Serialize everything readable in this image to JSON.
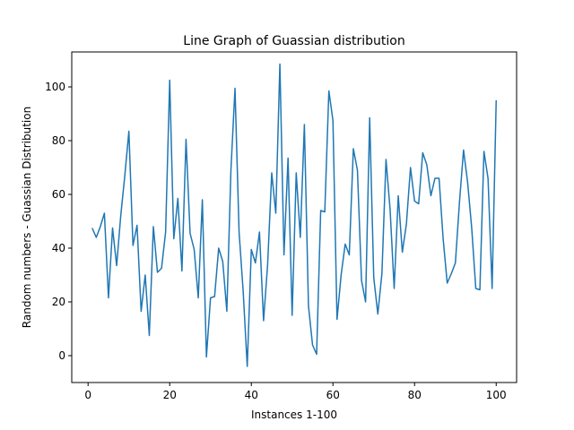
{
  "chart_data": {
    "type": "line",
    "title": "Line Graph of Guassian distribution",
    "xlabel": "Instances 1-100",
    "ylabel": "Random numbers - Guassian Distribution",
    "xlim": [
      -4,
      105
    ],
    "ylim": [
      -10,
      113
    ],
    "xticks": [
      0,
      20,
      40,
      60,
      80,
      100
    ],
    "yticks": [
      0,
      20,
      40,
      60,
      80,
      100
    ],
    "grid": false,
    "series": [
      {
        "color": "#1f77b4",
        "x": [
          1,
          2,
          3,
          4,
          5,
          6,
          7,
          8,
          9,
          10,
          11,
          12,
          13,
          14,
          15,
          16,
          17,
          18,
          19,
          20,
          21,
          22,
          23,
          24,
          25,
          26,
          27,
          28,
          29,
          30,
          31,
          32,
          33,
          34,
          35,
          36,
          37,
          38,
          39,
          40,
          41,
          42,
          43,
          44,
          45,
          46,
          47,
          48,
          49,
          50,
          51,
          52,
          53,
          54,
          55,
          56,
          57,
          58,
          59,
          60,
          61,
          62,
          63,
          64,
          65,
          66,
          67,
          68,
          69,
          70,
          71,
          72,
          73,
          74,
          75,
          76,
          77,
          78,
          79,
          80,
          81,
          82,
          83,
          84,
          85,
          86,
          87,
          88,
          89,
          90,
          91,
          92,
          93,
          94,
          95,
          96,
          97,
          98,
          99,
          100
        ],
        "values": [
          47.5,
          44,
          48,
          53,
          21.5,
          47.5,
          33.5,
          52,
          67,
          83.5,
          41,
          48.5,
          16.5,
          30,
          7.5,
          48,
          31,
          32.5,
          46,
          102.5,
          43.5,
          58.5,
          31.5,
          80.5,
          45.5,
          39.5,
          21.5,
          58,
          -0.5,
          21.5,
          22,
          40,
          35,
          16.5,
          69,
          99.5,
          46,
          24,
          -4,
          39.5,
          34.5,
          46,
          13,
          34,
          68,
          53,
          108.5,
          37.5,
          73.5,
          15,
          68,
          44,
          86,
          18.5,
          4,
          0.5,
          54,
          53.5,
          98.5,
          87.5,
          13.5,
          30,
          41.5,
          37.5,
          77,
          69,
          28,
          20,
          88.5,
          29,
          15.5,
          30.5,
          73,
          54.5,
          25,
          59.5,
          38.5,
          49,
          70,
          57.5,
          56.5,
          75.5,
          71,
          59.5,
          66,
          66,
          43.5,
          27,
          30.5,
          34.5,
          57,
          76.5,
          64.5,
          47.5,
          25,
          24.5,
          76,
          66,
          25,
          95
        ]
      }
    ]
  }
}
